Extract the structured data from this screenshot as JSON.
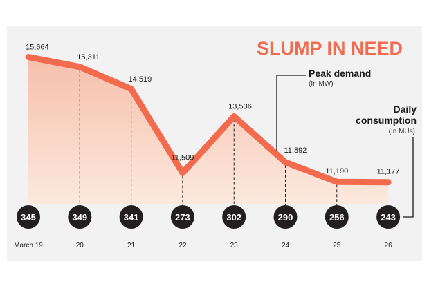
{
  "chart_data": {
    "type": "line",
    "title": "SLUMP IN NEED",
    "categories": [
      "March 19",
      "20",
      "21",
      "22",
      "23",
      "24",
      "25",
      "26"
    ],
    "series": [
      {
        "name": "Peak demand",
        "unit": "(In MW)",
        "values": [
          15664,
          15311,
          14519,
          11509,
          13536,
          11892,
          11190,
          11177
        ],
        "labels": [
          "15,664",
          "15,311",
          "14,519",
          "11,509",
          "13,536",
          "11,892",
          "11,190",
          "11,177"
        ]
      },
      {
        "name": "Daily consumption",
        "unit": "(In MUs)",
        "values": [
          345,
          349,
          341,
          273,
          302,
          290,
          256,
          243
        ]
      }
    ],
    "ylim": [
      10700,
      15900
    ],
    "legend": {
      "peak_label": "Peak demand",
      "peak_unit": "(In MW)",
      "consumption_label_line1": "Daily",
      "consumption_label_line2": "consumption",
      "consumption_unit": "(In MUs)"
    }
  },
  "colors": {
    "line": "#f26b4f",
    "fill": "#fbd9c8",
    "panel": "#f2f2f2",
    "circle": "#231f20",
    "title": "#f26b4f"
  }
}
